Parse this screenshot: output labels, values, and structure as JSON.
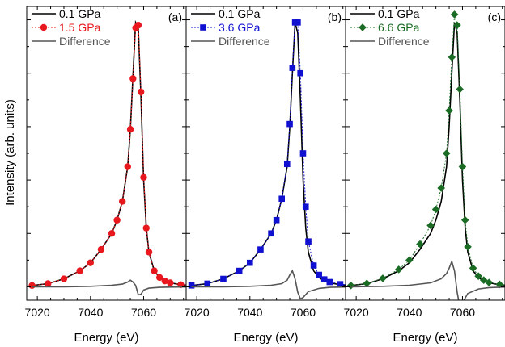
{
  "figure": {
    "xlabel": "Energy (eV)",
    "ylabel": "Intensity (arb. units)"
  },
  "chart_data": [
    {
      "type": "line",
      "panel": "(a)",
      "xlabel": "Energy (eV)",
      "ylabel": "Intensity (arb. units)",
      "xlim": [
        7016,
        7076
      ],
      "ylim": [
        -0.05,
        1.05
      ],
      "xticks": [
        7020,
        7040,
        7060
      ],
      "legend": "top-left",
      "grid": false,
      "series": [
        {
          "name": "0.1 GPa",
          "color": "#000000",
          "marker": "none",
          "linestyle": "solid",
          "x": [
            7018,
            7024,
            7030,
            7036,
            7040,
            7044,
            7048,
            7050,
            7052,
            7054,
            7055,
            7056,
            7057,
            7058,
            7059,
            7060,
            7061,
            7062,
            7064,
            7066,
            7068,
            7070,
            7074,
            7078
          ],
          "y": [
            0.005,
            0.012,
            0.03,
            0.06,
            0.09,
            0.14,
            0.2,
            0.25,
            0.32,
            0.45,
            0.59,
            0.79,
            0.99,
            0.97,
            0.71,
            0.4,
            0.22,
            0.13,
            0.06,
            0.035,
            0.022,
            0.015,
            0.008,
            0.005
          ]
        },
        {
          "name": "1.5 GPa",
          "color": "#e8181e",
          "marker": "circle",
          "linestyle": "dotted",
          "x": [
            7018,
            7024,
            7030,
            7036,
            7040,
            7044,
            7048,
            7050,
            7052,
            7054,
            7055,
            7056,
            7057,
            7058,
            7059,
            7060,
            7061,
            7062,
            7064,
            7066,
            7068,
            7070,
            7074,
            7078
          ],
          "y": [
            0.005,
            0.012,
            0.03,
            0.06,
            0.09,
            0.14,
            0.2,
            0.25,
            0.32,
            0.45,
            0.59,
            0.78,
            0.97,
            0.98,
            0.73,
            0.41,
            0.22,
            0.13,
            0.06,
            0.035,
            0.022,
            0.015,
            0.008,
            0.005
          ]
        },
        {
          "name": "Difference",
          "color": "#555555",
          "marker": "none",
          "linestyle": "solid",
          "x": [
            7018,
            7030,
            7040,
            7048,
            7052,
            7054,
            7055,
            7056,
            7057,
            7058,
            7059,
            7060,
            7062,
            7066,
            7070,
            7078
          ],
          "y": [
            0,
            0,
            0.002,
            0.006,
            0.01,
            0.018,
            0.025,
            0.018,
            0.005,
            -0.03,
            -0.028,
            -0.012,
            -0.005,
            -0.002,
            -0.001,
            0
          ]
        }
      ]
    },
    {
      "type": "line",
      "panel": "(b)",
      "xlabel": "Energy (eV)",
      "xlim": [
        7016,
        7076
      ],
      "ylim": [
        -0.05,
        1.05
      ],
      "xticks": [
        7020,
        7040,
        7060
      ],
      "legend": "top-left",
      "grid": false,
      "series": [
        {
          "name": "0.1 GPa",
          "color": "#000000",
          "marker": "none",
          "linestyle": "solid",
          "x": [
            7018,
            7024,
            7030,
            7036,
            7040,
            7044,
            7048,
            7050,
            7052,
            7054,
            7055,
            7056,
            7057,
            7058,
            7059,
            7060,
            7061,
            7062,
            7064,
            7066,
            7068,
            7070,
            7074,
            7078
          ],
          "y": [
            0.005,
            0.012,
            0.03,
            0.06,
            0.09,
            0.14,
            0.2,
            0.25,
            0.33,
            0.45,
            0.6,
            0.8,
            0.99,
            0.95,
            0.7,
            0.4,
            0.22,
            0.13,
            0.06,
            0.035,
            0.022,
            0.015,
            0.008,
            0.005
          ]
        },
        {
          "name": "3.6 GPa",
          "color": "#1010d0",
          "marker": "square",
          "linestyle": "dotted",
          "x": [
            7018,
            7024,
            7030,
            7036,
            7040,
            7044,
            7048,
            7050,
            7052,
            7054,
            7055,
            7056,
            7057,
            7058,
            7059,
            7060,
            7061,
            7062,
            7064,
            7066,
            7068,
            7070,
            7074,
            7078
          ],
          "y": [
            0.005,
            0.012,
            0.03,
            0.06,
            0.09,
            0.14,
            0.2,
            0.25,
            0.33,
            0.46,
            0.61,
            0.82,
            0.99,
            0.99,
            0.8,
            0.5,
            0.3,
            0.17,
            0.08,
            0.045,
            0.028,
            0.018,
            0.01,
            0.006
          ]
        },
        {
          "name": "Difference",
          "color": "#555555",
          "marker": "none",
          "linestyle": "solid",
          "x": [
            7018,
            7030,
            7040,
            7048,
            7052,
            7054,
            7055,
            7056,
            7057,
            7058,
            7059,
            7060,
            7062,
            7066,
            7070,
            7078
          ],
          "y": [
            0,
            0,
            0.002,
            0.006,
            0.012,
            0.025,
            0.045,
            0.06,
            0.03,
            -0.02,
            -0.045,
            -0.04,
            -0.018,
            -0.006,
            -0.002,
            0
          ]
        }
      ]
    },
    {
      "type": "line",
      "panel": "(c)",
      "xlabel": "Energy (eV)",
      "xlim": [
        7016,
        7076
      ],
      "ylim": [
        -0.05,
        1.05
      ],
      "xticks": [
        7020,
        7040,
        7060
      ],
      "legend": "top-left",
      "grid": false,
      "series": [
        {
          "name": "0.1 GPa",
          "color": "#000000",
          "marker": "none",
          "linestyle": "solid",
          "x": [
            7018,
            7024,
            7030,
            7036,
            7040,
            7044,
            7048,
            7050,
            7052,
            7054,
            7055,
            7056,
            7057,
            7058,
            7059,
            7060,
            7061,
            7062,
            7064,
            7066,
            7068,
            7070,
            7074,
            7078
          ],
          "y": [
            0.005,
            0.012,
            0.03,
            0.06,
            0.09,
            0.14,
            0.2,
            0.25,
            0.32,
            0.45,
            0.6,
            0.8,
            0.99,
            0.95,
            0.7,
            0.4,
            0.22,
            0.13,
            0.06,
            0.035,
            0.022,
            0.015,
            0.008,
            0.005
          ]
        },
        {
          "name": "6.6 GPa",
          "color": "#1a6b24",
          "marker": "diamond",
          "linestyle": "dotted",
          "x": [
            7018,
            7024,
            7030,
            7036,
            7040,
            7044,
            7048,
            7050,
            7052,
            7054,
            7055,
            7056,
            7057,
            7058,
            7059,
            7060,
            7061,
            7062,
            7064,
            7066,
            7068,
            7070,
            7074,
            7078
          ],
          "y": [
            0.005,
            0.013,
            0.032,
            0.065,
            0.1,
            0.16,
            0.23,
            0.29,
            0.37,
            0.5,
            0.66,
            0.86,
            1.02,
            0.98,
            0.74,
            0.45,
            0.25,
            0.15,
            0.07,
            0.04,
            0.025,
            0.016,
            0.009,
            0.005
          ]
        },
        {
          "name": "Difference",
          "color": "#555555",
          "marker": "none",
          "linestyle": "solid",
          "x": [
            7018,
            7030,
            7040,
            7048,
            7052,
            7054,
            7055,
            7056,
            7057,
            7058,
            7059,
            7060,
            7062,
            7066,
            7070,
            7078
          ],
          "y": [
            0,
            0.002,
            0.006,
            0.015,
            0.03,
            0.05,
            0.07,
            0.095,
            0.06,
            -0.02,
            -0.075,
            -0.06,
            -0.025,
            -0.008,
            -0.003,
            0
          ]
        }
      ]
    }
  ]
}
